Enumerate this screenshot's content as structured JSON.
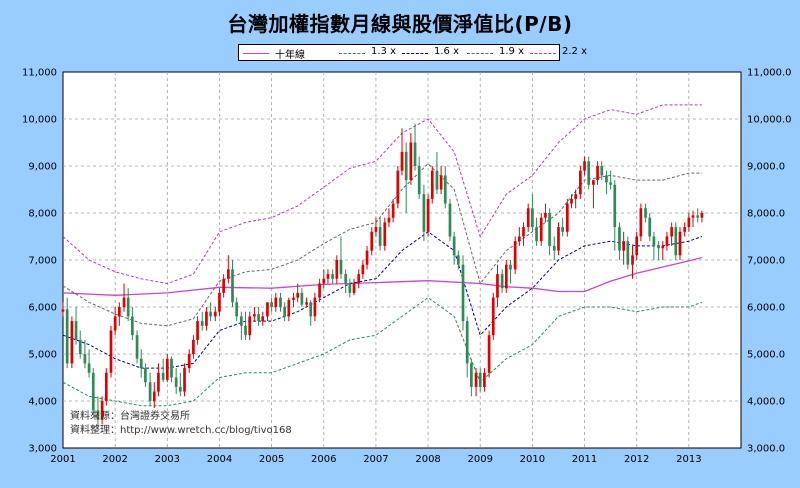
{
  "page": {
    "title": "台灣加權指數月線與股價淨值比(P/B)",
    "source_lines": [
      "資料來源：台灣證券交易所",
      "資料整理：http://www.wretch.cc/blog/tivo168"
    ]
  },
  "colors": {
    "background": "#99ccff",
    "plot_bg": "#ffffff",
    "grid": "#a0a0a0",
    "up_candle": "#e00000",
    "down_candle": "#2e8b57",
    "ma10y": "#cc44cc",
    "pb13": "#2e8b57",
    "pb16": "#000080",
    "pb19": "#666666",
    "pb22": "#b040b0"
  },
  "legend": [
    {
      "key": "ma10y",
      "label": "十年線",
      "style": "solid"
    },
    {
      "key": "pb13",
      "label": "1.3 x",
      "style": "dashed"
    },
    {
      "key": "pb16",
      "label": "1.6 x",
      "style": "dashed"
    },
    {
      "key": "pb19",
      "label": "1.9 x",
      "style": "dashed"
    },
    {
      "key": "pb22",
      "label": "2.2 x",
      "style": "dashed"
    }
  ],
  "chart_data": {
    "type": "line",
    "subtype": "candlestick-with-lines",
    "title": "台灣加權指數月線與股價淨值比(P/B)",
    "xlabel": "",
    "ylabel": "",
    "xlim": [
      2001,
      2014
    ],
    "ylim": [
      3000,
      11000
    ],
    "x_ticks": [
      "2001",
      "2002",
      "2003",
      "2004",
      "2005",
      "2006",
      "2007",
      "2008",
      "2009",
      "2010",
      "2011",
      "2012",
      "2013"
    ],
    "y_ticks_left": [
      "3,000",
      "4,000",
      "5,000",
      "6,000",
      "7,000",
      "8,000",
      "9,000",
      "10,000",
      "11,000"
    ],
    "y_ticks_right": [
      "3,000.0",
      "4,000.0",
      "5,000.0",
      "6,000.0",
      "7,000.0",
      "8,000.0",
      "9,000.0",
      "10,000.0",
      "11,000.0"
    ],
    "grid": true,
    "legend_position": "top-center",
    "series": [
      {
        "name": "十年線",
        "key": "ma10y",
        "x": [
          2001,
          2002,
          2003,
          2004,
          2005,
          2006,
          2007,
          2008,
          2009,
          2009.5,
          2010,
          2010.5,
          2011,
          2011.5,
          2012,
          2012.5,
          2013,
          2013.25
        ],
        "y": [
          6300,
          6250,
          6300,
          6420,
          6400,
          6480,
          6520,
          6560,
          6500,
          6430,
          6400,
          6330,
          6330,
          6550,
          6720,
          6850,
          6980,
          7050
        ]
      },
      {
        "name": "1.3 x",
        "key": "pb13",
        "x": [
          2001,
          2001.5,
          2002,
          2002.5,
          2003,
          2003.5,
          2004,
          2004.5,
          2005,
          2005.5,
          2006,
          2006.5,
          2007,
          2007.5,
          2008,
          2008.5,
          2009,
          2009.5,
          2010,
          2010.5,
          2011,
          2011.5,
          2012,
          2012.5,
          2013,
          2013.25
        ],
        "y": [
          4400,
          4100,
          4000,
          3900,
          3900,
          4000,
          4500,
          4600,
          4600,
          4800,
          5000,
          5300,
          5400,
          5800,
          6200,
          5800,
          4400,
          4900,
          5200,
          5800,
          6000,
          6000,
          5900,
          6000,
          6000,
          6100
        ]
      },
      {
        "name": "1.6 x",
        "key": "pb16",
        "x": [
          2001,
          2001.5,
          2002,
          2002.5,
          2003,
          2003.5,
          2004,
          2004.5,
          2005,
          2005.5,
          2006,
          2006.5,
          2007,
          2007.5,
          2008,
          2008.5,
          2009,
          2009.5,
          2010,
          2010.5,
          2011,
          2011.5,
          2012,
          2012.5,
          2013,
          2013.25
        ],
        "y": [
          5400,
          5200,
          4900,
          4700,
          4700,
          4800,
          5500,
          5700,
          5700,
          5900,
          6200,
          6500,
          6600,
          7200,
          7600,
          7200,
          5400,
          6000,
          6400,
          7000,
          7300,
          7400,
          7300,
          7300,
          7400,
          7500
        ]
      },
      {
        "name": "1.9 x",
        "key": "pb19",
        "x": [
          2001,
          2001.5,
          2002,
          2002.5,
          2003,
          2003.5,
          2004,
          2004.5,
          2005,
          2005.5,
          2006,
          2006.5,
          2007,
          2007.5,
          2008,
          2008.5,
          2009,
          2009.5,
          2010,
          2010.5,
          2011,
          2011.5,
          2012,
          2012.5,
          2013,
          2013.25
        ],
        "y": [
          6450,
          6100,
          5850,
          5650,
          5600,
          5750,
          6550,
          6750,
          6800,
          7000,
          7350,
          7650,
          7800,
          8500,
          9050,
          8500,
          6500,
          7200,
          7600,
          8000,
          8700,
          8800,
          8700,
          8700,
          8850,
          8850
        ]
      },
      {
        "name": "2.2 x",
        "key": "pb22",
        "x": [
          2001,
          2001.5,
          2002,
          2002.5,
          2003,
          2003.5,
          2004,
          2004.5,
          2005,
          2005.5,
          2006,
          2006.5,
          2007,
          2007.5,
          2008,
          2008.5,
          2009,
          2009.5,
          2010,
          2010.5,
          2011,
          2011.5,
          2012,
          2012.5,
          2013,
          2013.25
        ],
        "y": [
          7500,
          7000,
          6750,
          6600,
          6500,
          6700,
          7600,
          7800,
          7900,
          8150,
          8550,
          8950,
          9100,
          9700,
          10000,
          9300,
          7500,
          8400,
          8800,
          9500,
          10000,
          10200,
          10100,
          10300,
          10300,
          10300
        ]
      }
    ],
    "candles": [
      [
        2001.0,
        5900,
        6100,
        5800,
        5950
      ],
      [
        2001.08,
        5950,
        6200,
        4700,
        4800
      ],
      [
        2001.17,
        4800,
        5800,
        4700,
        5700
      ],
      [
        2001.25,
        5700,
        6000,
        5200,
        5300
      ],
      [
        2001.33,
        5300,
        5500,
        4900,
        5000
      ],
      [
        2001.42,
        5000,
        5300,
        4700,
        4800
      ],
      [
        2001.5,
        4800,
        5100,
        4500,
        4600
      ],
      [
        2001.58,
        4600,
        4700,
        3700,
        3800
      ],
      [
        2001.67,
        3800,
        4100,
        3400,
        3600
      ],
      [
        2001.75,
        3600,
        4100,
        3500,
        4000
      ],
      [
        2001.83,
        4000,
        4700,
        3900,
        4600
      ],
      [
        2001.92,
        4600,
        5600,
        4500,
        5500
      ],
      [
        2002.0,
        5500,
        6000,
        5400,
        5800
      ],
      [
        2002.08,
        5800,
        6100,
        5600,
        6000
      ],
      [
        2002.17,
        6000,
        6500,
        5900,
        6200
      ],
      [
        2002.25,
        6200,
        6400,
        5700,
        5800
      ],
      [
        2002.33,
        5800,
        6000,
        5300,
        5400
      ],
      [
        2002.42,
        5400,
        5500,
        4800,
        4900
      ],
      [
        2002.5,
        4900,
        5100,
        4500,
        4700
      ],
      [
        2002.58,
        4700,
        4800,
        4300,
        4400
      ],
      [
        2002.67,
        4400,
        4600,
        3900,
        4000
      ],
      [
        2002.75,
        4000,
        4400,
        3850,
        4200
      ],
      [
        2002.83,
        4200,
        4800,
        4100,
        4600
      ],
      [
        2002.92,
        4600,
        4900,
        4400,
        4450
      ],
      [
        2003.0,
        4450,
        5000,
        4400,
        4900
      ],
      [
        2003.08,
        4900,
        4950,
        4400,
        4500
      ],
      [
        2003.17,
        4500,
        4700,
        4150,
        4300
      ],
      [
        2003.25,
        4300,
        4600,
        4100,
        4200
      ],
      [
        2003.33,
        4200,
        4800,
        4100,
        4700
      ],
      [
        2003.42,
        4700,
        5100,
        4600,
        5000
      ],
      [
        2003.5,
        5000,
        5400,
        4900,
        5300
      ],
      [
        2003.58,
        5300,
        5800,
        5200,
        5700
      ],
      [
        2003.67,
        5700,
        5900,
        5500,
        5600
      ],
      [
        2003.75,
        5600,
        6000,
        5500,
        5900
      ],
      [
        2003.83,
        5900,
        6100,
        5700,
        5800
      ],
      [
        2003.92,
        5800,
        6000,
        5700,
        5900
      ],
      [
        2004.0,
        5900,
        6400,
        5800,
        6300
      ],
      [
        2004.08,
        6300,
        6700,
        6200,
        6600
      ],
      [
        2004.17,
        6600,
        7100,
        6500,
        6800
      ],
      [
        2004.25,
        6800,
        7000,
        6000,
        6100
      ],
      [
        2004.33,
        6100,
        6200,
        5700,
        5800
      ],
      [
        2004.42,
        5800,
        5900,
        5300,
        5600
      ],
      [
        2004.5,
        5600,
        5900,
        5300,
        5400
      ],
      [
        2004.58,
        5400,
        5900,
        5300,
        5800
      ],
      [
        2004.67,
        5800,
        6000,
        5700,
        5850
      ],
      [
        2004.75,
        5850,
        6000,
        5600,
        5700
      ],
      [
        2004.83,
        5700,
        5900,
        5600,
        5800
      ],
      [
        2004.92,
        5800,
        6100,
        5700,
        6100
      ],
      [
        2005.0,
        6100,
        6200,
        5900,
        6000
      ],
      [
        2005.08,
        6000,
        6300,
        5900,
        6200
      ],
      [
        2005.17,
        6200,
        6300,
        5900,
        6000
      ],
      [
        2005.25,
        6000,
        6100,
        5700,
        5800
      ],
      [
        2005.33,
        5800,
        6200,
        5700,
        6150
      ],
      [
        2005.42,
        6150,
        6300,
        6000,
        6200
      ],
      [
        2005.5,
        6200,
        6500,
        6100,
        6300
      ],
      [
        2005.58,
        6300,
        6400,
        6000,
        6050
      ],
      [
        2005.67,
        6050,
        6200,
        6000,
        6100
      ],
      [
        2005.75,
        6100,
        6150,
        5600,
        5800
      ],
      [
        2005.83,
        5800,
        6300,
        5700,
        6200
      ],
      [
        2005.92,
        6200,
        6600,
        6100,
        6500
      ],
      [
        2006.0,
        6500,
        6800,
        6400,
        6600
      ],
      [
        2006.08,
        6600,
        6800,
        6500,
        6700
      ],
      [
        2006.17,
        6700,
        6800,
        6500,
        6600
      ],
      [
        2006.25,
        6600,
        7100,
        6500,
        7000
      ],
      [
        2006.33,
        7000,
        7500,
        6600,
        6700
      ],
      [
        2006.42,
        6700,
        6800,
        6300,
        6500
      ],
      [
        2006.5,
        6500,
        6600,
        6200,
        6300
      ],
      [
        2006.58,
        6300,
        6600,
        6250,
        6500
      ],
      [
        2006.67,
        6500,
        6800,
        6400,
        6700
      ],
      [
        2006.75,
        6700,
        7000,
        6600,
        6900
      ],
      [
        2006.83,
        6900,
        7300,
        6800,
        7200
      ],
      [
        2006.92,
        7200,
        7700,
        7100,
        7600
      ],
      [
        2007.0,
        7600,
        7900,
        7500,
        7700
      ],
      [
        2007.08,
        7700,
        7900,
        7200,
        7300
      ],
      [
        2007.17,
        7300,
        7900,
        7200,
        7800
      ],
      [
        2007.25,
        7800,
        8100,
        7700,
        7900
      ],
      [
        2007.33,
        7900,
        8300,
        7800,
        8200
      ],
      [
        2007.42,
        8200,
        9000,
        8100,
        8900
      ],
      [
        2007.5,
        8900,
        9800,
        8800,
        9300
      ],
      [
        2007.58,
        9300,
        9500,
        8000,
        8700
      ],
      [
        2007.67,
        8700,
        9700,
        8600,
        9500
      ],
      [
        2007.75,
        9500,
        9900,
        8900,
        9000
      ],
      [
        2007.83,
        9000,
        9200,
        8300,
        8400
      ],
      [
        2007.92,
        8400,
        8600,
        7400,
        7600
      ],
      [
        2008.0,
        7600,
        8400,
        7500,
        8300
      ],
      [
        2008.08,
        8300,
        9000,
        8200,
        8900
      ],
      [
        2008.17,
        8900,
        9300,
        8400,
        8500
      ],
      [
        2008.25,
        8500,
        9000,
        8400,
        8800
      ],
      [
        2008.33,
        8800,
        9000,
        8100,
        8200
      ],
      [
        2008.42,
        8200,
        8300,
        7400,
        7500
      ],
      [
        2008.5,
        7500,
        7600,
        6900,
        7100
      ],
      [
        2008.58,
        7100,
        7200,
        6800,
        6900
      ],
      [
        2008.67,
        6900,
        7100,
        5500,
        5700
      ],
      [
        2008.75,
        5700,
        5800,
        4500,
        4800
      ],
      [
        2008.83,
        4800,
        4900,
        4100,
        4300
      ],
      [
        2008.92,
        4300,
        4700,
        4100,
        4600
      ],
      [
        2009.0,
        4600,
        4700,
        4200,
        4300
      ],
      [
        2009.08,
        4300,
        4700,
        4200,
        4600
      ],
      [
        2009.17,
        4600,
        5500,
        4500,
        5400
      ],
      [
        2009.25,
        5400,
        6300,
        5300,
        6200
      ],
      [
        2009.33,
        6200,
        6900,
        6000,
        6700
      ],
      [
        2009.42,
        6700,
        6800,
        6300,
        6400
      ],
      [
        2009.5,
        6400,
        7000,
        6300,
        6900
      ],
      [
        2009.58,
        6900,
        7000,
        6500,
        6800
      ],
      [
        2009.67,
        6800,
        7500,
        6700,
        7400
      ],
      [
        2009.75,
        7400,
        7700,
        7300,
        7500
      ],
      [
        2009.83,
        7500,
        7800,
        7300,
        7700
      ],
      [
        2009.92,
        7700,
        8200,
        7600,
        8100
      ],
      [
        2010.0,
        8100,
        8400,
        7600,
        7700
      ],
      [
        2010.08,
        7700,
        7900,
        7300,
        7400
      ],
      [
        2010.17,
        7400,
        8000,
        7300,
        7900
      ],
      [
        2010.25,
        7900,
        8200,
        7800,
        8000
      ],
      [
        2010.33,
        8000,
        8100,
        7100,
        7300
      ],
      [
        2010.42,
        7300,
        7500,
        7000,
        7200
      ],
      [
        2010.5,
        7200,
        7800,
        7100,
        7700
      ],
      [
        2010.58,
        7700,
        7900,
        7500,
        7600
      ],
      [
        2010.67,
        7600,
        8300,
        7500,
        8200
      ],
      [
        2010.75,
        8200,
        8400,
        8100,
        8300
      ],
      [
        2010.83,
        8300,
        8500,
        8100,
        8400
      ],
      [
        2010.92,
        8400,
        9000,
        8300,
        8900
      ],
      [
        2011.0,
        8900,
        9200,
        8800,
        9100
      ],
      [
        2011.08,
        9100,
        9200,
        8500,
        8600
      ],
      [
        2011.17,
        8600,
        8700,
        8100,
        8700
      ],
      [
        2011.25,
        8700,
        9100,
        8600,
        9000
      ],
      [
        2011.33,
        9000,
        9100,
        8700,
        8800
      ],
      [
        2011.42,
        8800,
        8900,
        8400,
        8650
      ],
      [
        2011.5,
        8650,
        8900,
        8500,
        8600
      ],
      [
        2011.58,
        8600,
        8700,
        7200,
        7700
      ],
      [
        2011.67,
        7700,
        7800,
        7000,
        7200
      ],
      [
        2011.75,
        7200,
        7600,
        6900,
        7400
      ],
      [
        2011.83,
        7400,
        7500,
        6800,
        6900
      ],
      [
        2011.92,
        6900,
        7300,
        6600,
        7100
      ],
      [
        2012.0,
        7100,
        7600,
        7000,
        7500
      ],
      [
        2012.08,
        7500,
        8200,
        7400,
        8100
      ],
      [
        2012.17,
        8100,
        8200,
        7800,
        7900
      ],
      [
        2012.25,
        7900,
        8000,
        7400,
        7500
      ],
      [
        2012.33,
        7500,
        7600,
        7000,
        7300
      ],
      [
        2012.42,
        7300,
        7400,
        7000,
        7250
      ],
      [
        2012.5,
        7250,
        7400,
        7000,
        7300
      ],
      [
        2012.58,
        7300,
        7600,
        7200,
        7500
      ],
      [
        2012.67,
        7500,
        7800,
        7300,
        7700
      ],
      [
        2012.75,
        7700,
        7800,
        7000,
        7100
      ],
      [
        2012.83,
        7100,
        7700,
        7000,
        7600
      ],
      [
        2012.92,
        7600,
        7800,
        7500,
        7700
      ],
      [
        2013.0,
        7700,
        8000,
        7600,
        7900
      ],
      [
        2013.08,
        7900,
        8050,
        7700,
        7950
      ],
      [
        2013.17,
        7950,
        8100,
        7800,
        7900
      ],
      [
        2013.25,
        7900,
        8050,
        7800,
        8000
      ]
    ]
  }
}
